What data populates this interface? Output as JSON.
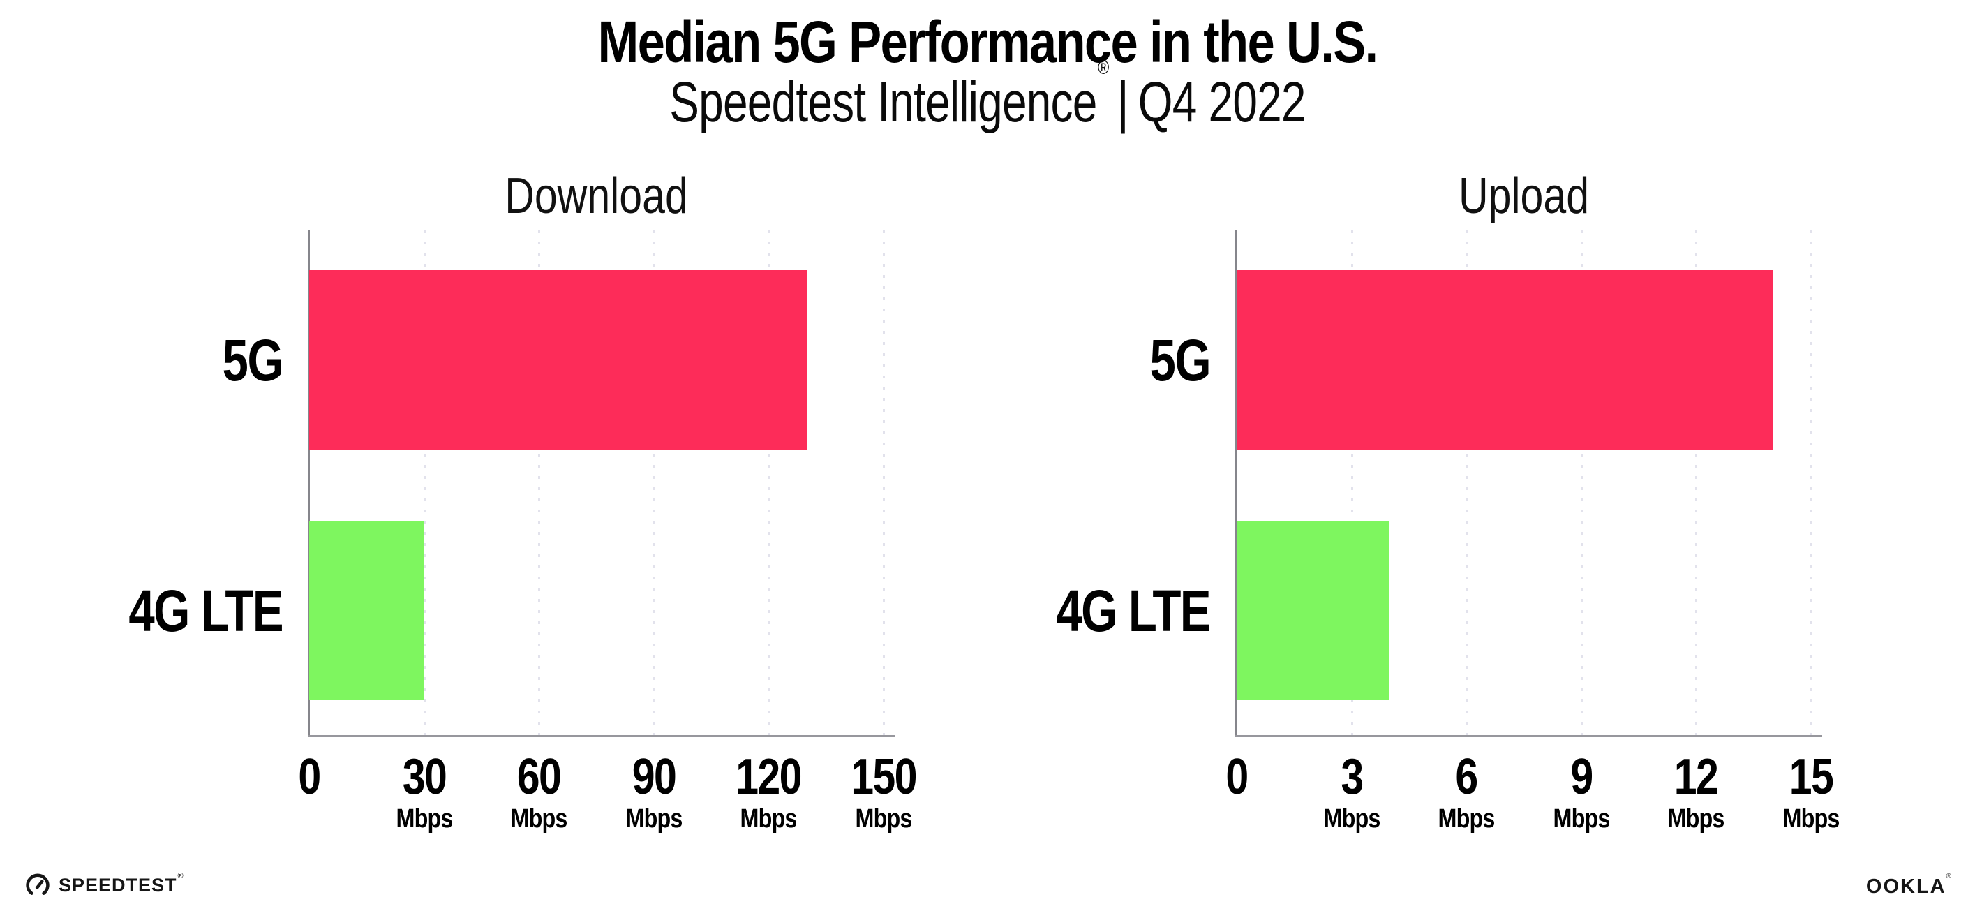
{
  "header": {
    "title": "Median 5G Performance in the U.S.",
    "subtitle_brand": "Speedtest Intelligence",
    "subtitle_reg_mark": "®",
    "subtitle_separator": "|",
    "subtitle_period": "Q4 2022"
  },
  "colors": {
    "bar_5g": "#fd2c59",
    "bar_4g_lte": "#7ef65f",
    "y_axis": "#86868c",
    "x_axis": "#97979d",
    "gridline": "#e2e2ec",
    "text": "#000000"
  },
  "chart_data": [
    {
      "type": "bar",
      "orientation": "horizontal",
      "title": "Download",
      "categories": [
        "5G",
        "4G LTE"
      ],
      "values": [
        130,
        30
      ],
      "unit": "Mbps",
      "xlim": [
        0,
        150
      ],
      "xticks": [
        0,
        30,
        60,
        90,
        120,
        150
      ],
      "tick_unit": "Mbps",
      "zero_tick_has_unit": false,
      "grid": "dotted-vertical",
      "legend": "none",
      "bar_colors": [
        "#fd2c59",
        "#7ef65f"
      ]
    },
    {
      "type": "bar",
      "orientation": "horizontal",
      "title": "Upload",
      "categories": [
        "5G",
        "4G LTE"
      ],
      "values": [
        14,
        4
      ],
      "unit": "Mbps",
      "xlim": [
        0,
        15
      ],
      "xticks": [
        0,
        3,
        6,
        9,
        12,
        15
      ],
      "tick_unit": "Mbps",
      "zero_tick_has_unit": false,
      "grid": "dotted-vertical",
      "legend": "none",
      "bar_colors": [
        "#fd2c59",
        "#7ef65f"
      ]
    }
  ],
  "footer": {
    "speedtest_icon": "gauge-icon",
    "speedtest_logo_text": "SPEEDTEST",
    "speedtest_reg_mark": "®",
    "ookla_logo_text": "OOKLA",
    "ookla_reg_mark": "®"
  }
}
